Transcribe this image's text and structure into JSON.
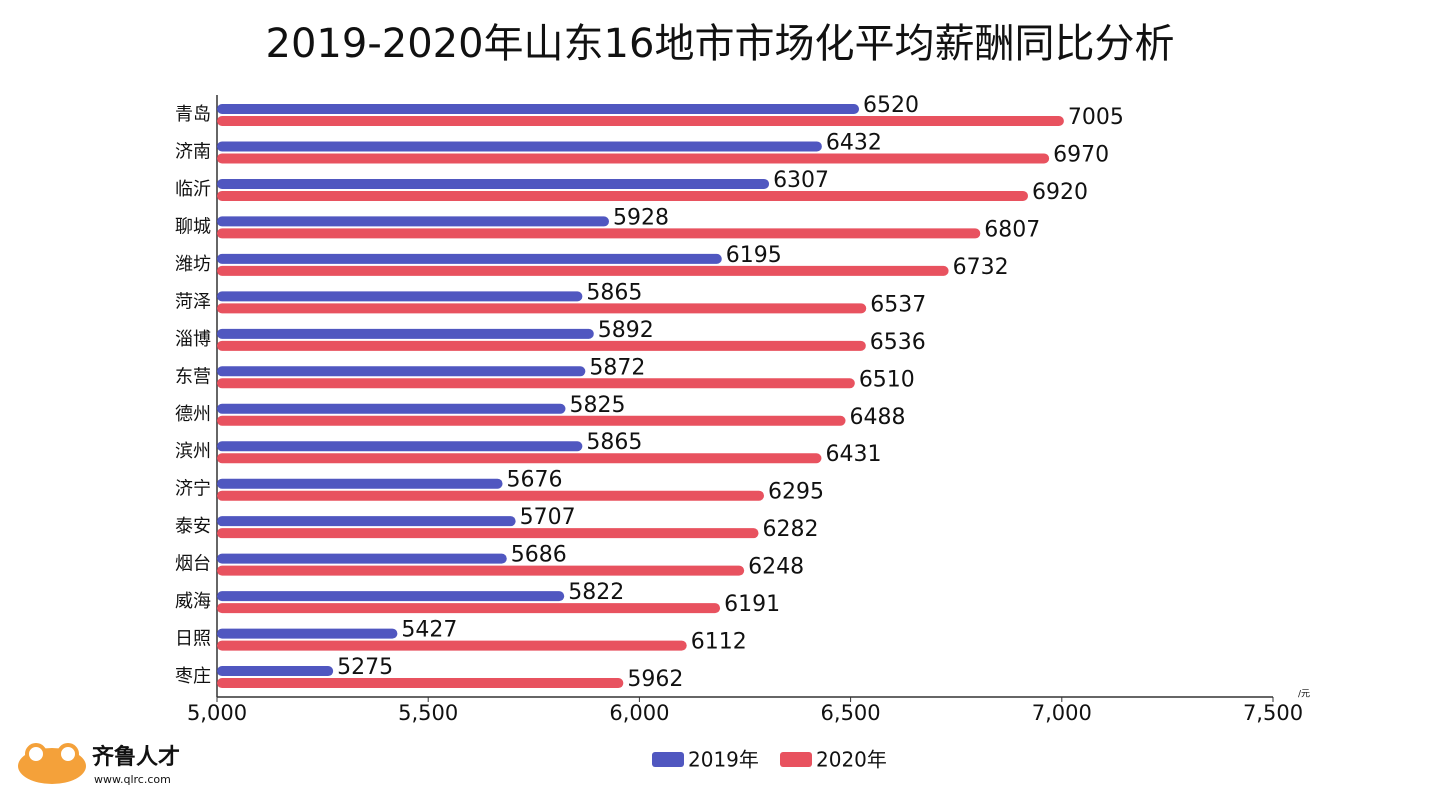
{
  "chart_data": {
    "type": "hbar",
    "title": "2019-2020年山东16地市市场化平均薪酬同比分析",
    "categories": [
      "青岛",
      "济南",
      "临沂",
      "聊城",
      "潍坊",
      "菏泽",
      "淄博",
      "东营",
      "德州",
      "滨州",
      "济宁",
      "泰安",
      "烟台",
      "威海",
      "日照",
      "枣庄"
    ],
    "series": [
      {
        "name": "2019年",
        "color": "#5057c0",
        "values": [
          6520,
          6432,
          6307,
          5928,
          6195,
          5865,
          5892,
          5872,
          5825,
          5865,
          5676,
          5707,
          5686,
          5822,
          5427,
          5275
        ]
      },
      {
        "name": "2020年",
        "color": "#e8525f",
        "values": [
          7005,
          6970,
          6920,
          6807,
          6732,
          6537,
          6536,
          6510,
          6488,
          6431,
          6295,
          6282,
          6248,
          6191,
          6112,
          5962
        ]
      }
    ],
    "xlim": [
      5000,
      7500
    ],
    "xticks": [
      {
        "value": 5000,
        "label": "5,000"
      },
      {
        "value": 5500,
        "label": "5,500"
      },
      {
        "value": 6000,
        "label": "6,000"
      },
      {
        "value": 6500,
        "label": "6,500"
      },
      {
        "value": 7000,
        "label": "7,000"
      },
      {
        "value": 7500,
        "label": "7,500"
      }
    ],
    "xlabel": "/元",
    "legend": "bottom",
    "annotations": [
      "齐鲁人才",
      "www.qlrc.com"
    ]
  }
}
